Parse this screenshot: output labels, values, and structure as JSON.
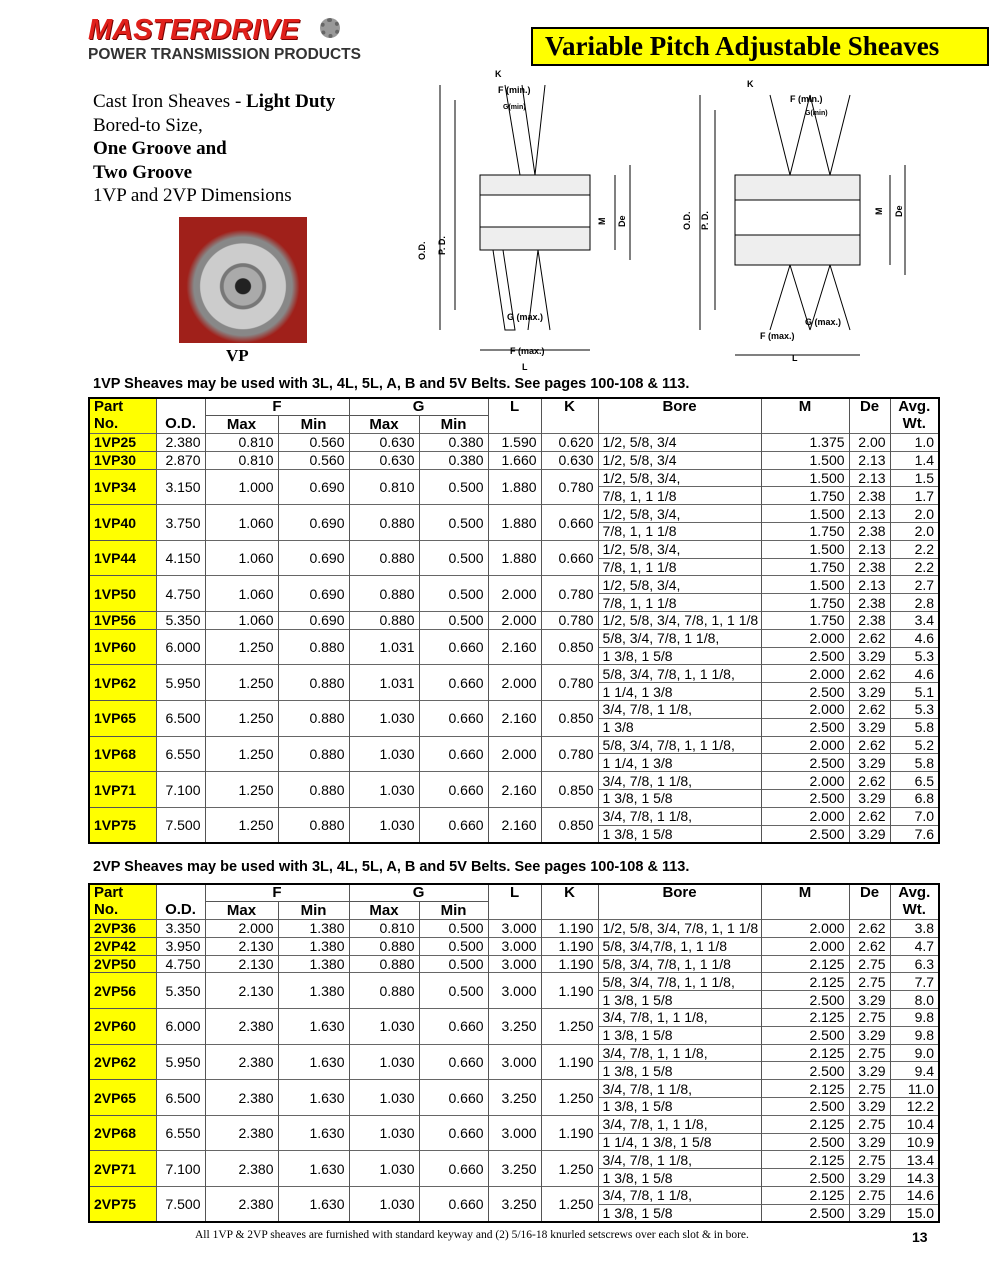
{
  "header": {
    "logo_main": "MASTERDRIVE",
    "logo_sub": "POWER TRANSMISSION PRODUCTS",
    "title": "Variable Pitch Adjustable Sheaves"
  },
  "intro": {
    "line1a": "Cast Iron Sheaves - ",
    "line1b": "Light Duty",
    "line2": "Bored-to Size,",
    "line3": "One Groove and",
    "line4": "Two Groove",
    "line5": "1VP and 2VP  Dimensions",
    "photo_label": "VP"
  },
  "diagram_labels": {
    "k": "K",
    "f_min": "F (min.)",
    "g_min": "G(min)",
    "g_max": "G (max.)",
    "f_max": "F (max.)",
    "l": "L",
    "od": "O.D.",
    "pd": "P. D.",
    "m": "M",
    "de": "De"
  },
  "headers": {
    "part": "Part",
    "no": "No.",
    "od": "O.D.",
    "f": "F",
    "g": "G",
    "l": "L",
    "k": "K",
    "bore": "Bore",
    "m": "M",
    "de": "De",
    "avg": "Avg.",
    "wt": "Wt.",
    "max": "Max",
    "min": "Min"
  },
  "table1": {
    "caption": "1VP Sheaves may be used with 3L, 4L, 5L, A, B and 5V Belts. See pages 100-108 & 113.",
    "rows": [
      {
        "part": "1VP25",
        "od": "2.380",
        "fmax": "0.810",
        "fmin": "0.560",
        "gmax": "0.630",
        "gmin": "0.380",
        "l": "1.590",
        "k": "0.620",
        "bores": [
          [
            "1/2, 5/8, 3/4",
            "1.375",
            "2.00",
            "1.0"
          ]
        ]
      },
      {
        "part": "1VP30",
        "od": "2.870",
        "fmax": "0.810",
        "fmin": "0.560",
        "gmax": "0.630",
        "gmin": "0.380",
        "l": "1.660",
        "k": "0.630",
        "bores": [
          [
            "1/2, 5/8, 3/4",
            "1.500",
            "2.13",
            "1.4"
          ]
        ]
      },
      {
        "part": "1VP34",
        "od": "3.150",
        "fmax": "1.000",
        "fmin": "0.690",
        "gmax": "0.810",
        "gmin": "0.500",
        "l": "1.880",
        "k": "0.780",
        "bores": [
          [
            "1/2, 5/8, 3/4,",
            "1.500",
            "2.13",
            "1.5"
          ],
          [
            " 7/8, 1,  1 1/8",
            "1.750",
            "2.38",
            "1.7"
          ]
        ]
      },
      {
        "part": "1VP40",
        "od": "3.750",
        "fmax": "1.060",
        "fmin": "0.690",
        "gmax": "0.880",
        "gmin": "0.500",
        "l": "1.880",
        "k": "0.660",
        "bores": [
          [
            "1/2, 5/8, 3/4,",
            "1.500",
            "2.13",
            "2.0"
          ],
          [
            "7/8, 1,  1 1/8",
            "1.750",
            "2.38",
            "2.0"
          ]
        ]
      },
      {
        "part": "1VP44",
        "od": "4.150",
        "fmax": "1.060",
        "fmin": "0.690",
        "gmax": "0.880",
        "gmin": "0.500",
        "l": "1.880",
        "k": "0.660",
        "bores": [
          [
            "1/2, 5/8, 3/4,",
            "1.500",
            "2.13",
            "2.2"
          ],
          [
            "7/8, 1,  1 1/8",
            "1.750",
            "2.38",
            "2.2"
          ]
        ]
      },
      {
        "part": "1VP50",
        "od": "4.750",
        "fmax": "1.060",
        "fmin": "0.690",
        "gmax": "0.880",
        "gmin": "0.500",
        "l": "2.000",
        "k": "0.780",
        "bores": [
          [
            "1/2, 5/8, 3/4,",
            "1.500",
            "2.13",
            "2.7"
          ],
          [
            "7/8, 1,  1 1/8",
            "1.750",
            "2.38",
            "2.8"
          ]
        ]
      },
      {
        "part": "1VP56",
        "od": "5.350",
        "fmax": "1.060",
        "fmin": "0.690",
        "gmax": "0.880",
        "gmin": "0.500",
        "l": "2.000",
        "k": "0.780",
        "bores": [
          [
            "1/2, 5/8, 3/4, 7/8, 1, 1 1/8",
            "1.750",
            "2.38",
            "3.4"
          ]
        ]
      },
      {
        "part": "1VP60",
        "od": "6.000",
        "fmax": "1.250",
        "fmin": "0.880",
        "gmax": "1.031",
        "gmin": "0.660",
        "l": "2.160",
        "k": "0.850",
        "bores": [
          [
            "5/8, 3/4, 7/8, 1 1/8,",
            "2.000",
            "2.62",
            "4.6"
          ],
          [
            "1 3/8, 1 5/8",
            "2.500",
            "3.29",
            "5.3"
          ]
        ]
      },
      {
        "part": "1VP62",
        "od": "5.950",
        "fmax": "1.250",
        "fmin": "0.880",
        "gmax": "1.031",
        "gmin": "0.660",
        "l": "2.000",
        "k": "0.780",
        "bores": [
          [
            "5/8, 3/4, 7/8, 1, 1 1/8,",
            "2.000",
            "2.62",
            "4.6"
          ],
          [
            "1 1/4, 1 3/8",
            "2.500",
            "3.29",
            "5.1"
          ]
        ]
      },
      {
        "part": "1VP65",
        "od": "6.500",
        "fmax": "1.250",
        "fmin": "0.880",
        "gmax": "1.030",
        "gmin": "0.660",
        "l": "2.160",
        "k": "0.850",
        "bores": [
          [
            "3/4, 7/8, 1 1/8,",
            "2.000",
            "2.62",
            "5.3"
          ],
          [
            "1 3/8",
            "2.500",
            "3.29",
            "5.8"
          ]
        ]
      },
      {
        "part": "1VP68",
        "od": "6.550",
        "fmax": "1.250",
        "fmin": "0.880",
        "gmax": "1.030",
        "gmin": "0.660",
        "l": "2.000",
        "k": "0.780",
        "bores": [
          [
            "5/8, 3/4, 7/8, 1, 1 1/8,",
            "2.000",
            "2.62",
            "5.2"
          ],
          [
            "1 1/4, 1 3/8",
            "2.500",
            "3.29",
            "5.8"
          ]
        ]
      },
      {
        "part": "1VP71",
        "od": "7.100",
        "fmax": "1.250",
        "fmin": "0.880",
        "gmax": "1.030",
        "gmin": "0.660",
        "l": "2.160",
        "k": "0.850",
        "bores": [
          [
            "3/4, 7/8, 1 1/8,",
            "2.000",
            "2.62",
            "6.5"
          ],
          [
            "1 3/8, 1 5/8",
            "2.500",
            "3.29",
            "6.8"
          ]
        ]
      },
      {
        "part": "1VP75",
        "od": "7.500",
        "fmax": "1.250",
        "fmin": "0.880",
        "gmax": "1.030",
        "gmin": "0.660",
        "l": "2.160",
        "k": "0.850",
        "bores": [
          [
            "3/4, 7/8, 1 1/8,",
            "2.000",
            "2.62",
            "7.0"
          ],
          [
            "1 3/8, 1 5/8",
            "2.500",
            "3.29",
            "7.6"
          ]
        ]
      }
    ]
  },
  "table2": {
    "caption": "2VP Sheaves may be used with 3L, 4L, 5L, A, B and 5V Belts. See pages 100-108 & 113.",
    "rows": [
      {
        "part": "2VP36",
        "od": "3.350",
        "fmax": "2.000",
        "fmin": "1.380",
        "gmax": "0.810",
        "gmin": "0.500",
        "l": "3.000",
        "k": "1.190",
        "bores": [
          [
            "1/2, 5/8, 3/4, 7/8, 1, 1 1/8",
            "2.000",
            "2.62",
            "3.8"
          ]
        ]
      },
      {
        "part": "2VP42",
        "od": "3.950",
        "fmax": "2.130",
        "fmin": "1.380",
        "gmax": "0.880",
        "gmin": "0.500",
        "l": "3.000",
        "k": "1.190",
        "bores": [
          [
            "5/8,  3/4,7/8, 1, 1 1/8",
            "2.000",
            "2.62",
            "4.7"
          ]
        ]
      },
      {
        "part": "2VP50",
        "od": "4.750",
        "fmax": "2.130",
        "fmin": "1.380",
        "gmax": "0.880",
        "gmin": "0.500",
        "l": "3.000",
        "k": "1.190",
        "bores": [
          [
            "5/8, 3/4, 7/8, 1, 1 1/8",
            "2.125",
            "2.75",
            "6.3"
          ]
        ]
      },
      {
        "part": "2VP56",
        "od": "5.350",
        "fmax": "2.130",
        "fmin": "1.380",
        "gmax": "0.880",
        "gmin": "0.500",
        "l": "3.000",
        "k": "1.190",
        "bores": [
          [
            "5/8, 3/4, 7/8, 1, 1 1/8,",
            "2.125",
            "2.75",
            "7.7"
          ],
          [
            "1 3/8, 1 5/8",
            "2.500",
            "3.29",
            "8.0"
          ]
        ]
      },
      {
        "part": "2VP60",
        "od": "6.000",
        "fmax": "2.380",
        "fmin": "1.630",
        "gmax": "1.030",
        "gmin": "0.660",
        "l": "3.250",
        "k": "1.250",
        "bores": [
          [
            "3/4, 7/8, 1, 1 1/8,",
            "2.125",
            "2.75",
            "9.8"
          ],
          [
            "1 3/8, 1 5/8",
            "2.500",
            "3.29",
            "9.8"
          ]
        ]
      },
      {
        "part": "2VP62",
        "od": "5.950",
        "fmax": "2.380",
        "fmin": "1.630",
        "gmax": "1.030",
        "gmin": "0.660",
        "l": "3.000",
        "k": "1.190",
        "bores": [
          [
            "3/4, 7/8, 1, 1 1/8,",
            "2.125",
            "2.75",
            "9.0"
          ],
          [
            "1 3/8, 1 5/8",
            "2.500",
            "3.29",
            "9.4"
          ]
        ]
      },
      {
        "part": "2VP65",
        "od": "6.500",
        "fmax": "2.380",
        "fmin": "1.630",
        "gmax": "1.030",
        "gmin": "0.660",
        "l": "3.250",
        "k": "1.250",
        "bores": [
          [
            "3/4, 7/8, 1 1/8,",
            "2.125",
            "2.75",
            "11.0"
          ],
          [
            "1 3/8, 1 5/8",
            "2.500",
            "3.29",
            "12.2"
          ]
        ]
      },
      {
        "part": "2VP68",
        "od": "6.550",
        "fmax": "2.380",
        "fmin": "1.630",
        "gmax": "1.030",
        "gmin": "0.660",
        "l": "3.000",
        "k": "1.190",
        "bores": [
          [
            "3/4, 7/8, 1, 1 1/8,",
            "2.125",
            "2.75",
            "10.4"
          ],
          [
            "1 1/4, 1 3/8, 1 5/8",
            "2.500",
            "3.29",
            "10.9"
          ]
        ]
      },
      {
        "part": "2VP71",
        "od": "7.100",
        "fmax": "2.380",
        "fmin": "1.630",
        "gmax": "1.030",
        "gmin": "0.660",
        "l": "3.250",
        "k": "1.250",
        "bores": [
          [
            "3/4, 7/8, 1 1/8,",
            "2.125",
            "2.75",
            "13.4"
          ],
          [
            "1 3/8, 1 5/8",
            "2.500",
            "3.29",
            "14.3"
          ]
        ]
      },
      {
        "part": "2VP75",
        "od": "7.500",
        "fmax": "2.380",
        "fmin": "1.630",
        "gmax": "1.030",
        "gmin": "0.660",
        "l": "3.250",
        "k": "1.250",
        "bores": [
          [
            "3/4, 7/8, 1 1/8,",
            "2.125",
            "2.75",
            "14.6"
          ],
          [
            "1 3/8, 1 5/8",
            "2.500",
            "3.29",
            "15.0"
          ]
        ]
      }
    ]
  },
  "footer": {
    "note": "All 1VP & 2VP sheaves are furnished with standard keyway and (2) 5/16-18 knurled setscrews over each slot & in bore.",
    "page": "13"
  }
}
